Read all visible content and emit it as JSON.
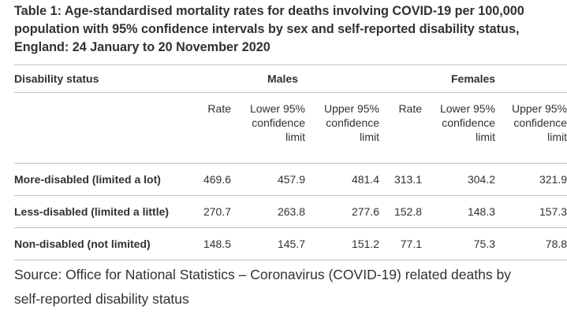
{
  "title": "Table 1: Age-standardised mortality rates for deaths involving COVID-19 per 100,000 population with 95% confidence intervals by sex and self-reported disability status, England: 24 January to 20 November 2020",
  "title_lines": [
    "Table 1: Age-standardised mortality rates for deaths involving COVID-19 per 100,000",
    "population with 95% confidence intervals by sex and self-reported disability status,",
    "England: 24 January to 20 November 2020"
  ],
  "table": {
    "row_header": "Disability status",
    "groups": [
      "Males",
      "Females"
    ],
    "subheaders": [
      [
        "Rate"
      ],
      [
        "Lower 95%",
        "confidence",
        "limit"
      ],
      [
        "Upper 95%",
        "confidence",
        "limit"
      ],
      [
        "Rate"
      ],
      [
        "Lower 95%",
        "confidence",
        "limit"
      ],
      [
        "Upper 95%",
        "confidence",
        "limit"
      ]
    ],
    "rows": [
      {
        "label": "More-disabled (limited a lot)",
        "values": [
          "469.6",
          "457.9",
          "481.4",
          "313.1",
          "304.2",
          "321.9"
        ]
      },
      {
        "label": "Less-disabled (limited a little)",
        "values": [
          "270.7",
          "263.8",
          "277.6",
          "152.8",
          "148.3",
          "157.3"
        ]
      },
      {
        "label": "Non-disabled (not limited)",
        "values": [
          "148.5",
          "145.7",
          "151.2",
          "77.1",
          "75.3",
          "78.8"
        ]
      }
    ]
  },
  "source_lines": [
    "Source: Office for National Statistics – Coronavirus (COVID-19) related deaths by",
    "self-reported disability status"
  ]
}
